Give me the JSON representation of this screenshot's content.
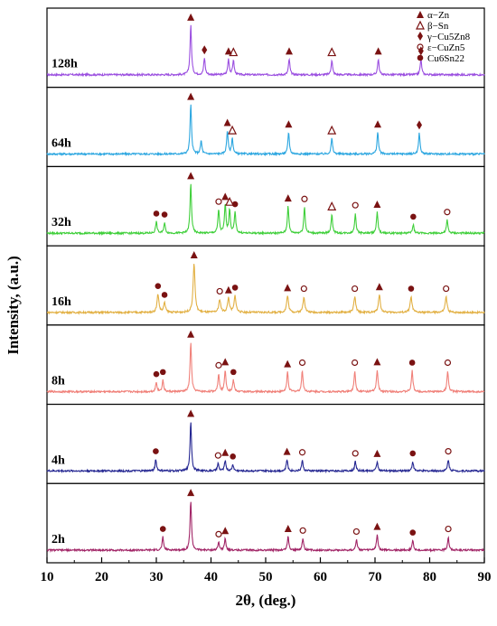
{
  "chart_data": {
    "type": "line",
    "xlabel": "2θ, (deg.)",
    "ylabel": "Intensity, (a.u.)",
    "xlim": [
      10,
      90
    ],
    "xticks": [
      "10",
      "20",
      "30",
      "40",
      "50",
      "60",
      "70",
      "80",
      "90"
    ],
    "grid": false,
    "legend_position": "top-right",
    "markers": [
      {
        "key": "alpha",
        "label": "α−Zn",
        "shape": "triangle-filled",
        "color": "#7a1212"
      },
      {
        "key": "beta",
        "label": "β−Sn",
        "shape": "triangle-open",
        "color": "#7a1212"
      },
      {
        "key": "gamma",
        "label": "γ−Cu5Zn8",
        "shape": "diamond",
        "color": "#7a1212"
      },
      {
        "key": "eps",
        "label": "ε−CuZn5",
        "shape": "circle-open",
        "color": "#7a1212"
      },
      {
        "key": "cusn",
        "label": "Cu6Sn22",
        "shape": "circle-filled",
        "color": "#7a1212"
      }
    ],
    "series": [
      {
        "name": "128h",
        "color": "#9b4fe0",
        "peaks": [
          [
            36.3,
            0.95
          ],
          [
            38.8,
            0.32
          ],
          [
            43.2,
            0.3
          ],
          [
            44.1,
            0.28
          ],
          [
            54.3,
            0.3
          ],
          [
            62.1,
            0.28
          ],
          [
            70.6,
            0.3
          ],
          [
            78.4,
            0.3
          ]
        ],
        "markers": [
          [
            36.3,
            "alpha"
          ],
          [
            38.8,
            "gamma"
          ],
          [
            43.2,
            "alpha"
          ],
          [
            44.1,
            "beta"
          ],
          [
            54.3,
            "alpha"
          ],
          [
            62.1,
            "beta"
          ],
          [
            70.6,
            "alpha"
          ],
          [
            78.4,
            "gamma"
          ]
        ]
      },
      {
        "name": "64h",
        "color": "#2ba6e0",
        "peaks": [
          [
            36.3,
            0.95
          ],
          [
            38.2,
            0.25
          ],
          [
            43.0,
            0.45
          ],
          [
            43.9,
            0.3
          ],
          [
            54.2,
            0.42
          ],
          [
            62.1,
            0.3
          ],
          [
            70.5,
            0.42
          ],
          [
            78.1,
            0.4
          ]
        ],
        "markers": [
          [
            36.3,
            "alpha"
          ],
          [
            43.0,
            "alpha"
          ],
          [
            43.9,
            "beta"
          ],
          [
            54.2,
            "alpha"
          ],
          [
            62.1,
            "beta"
          ],
          [
            70.5,
            "alpha"
          ],
          [
            78.1,
            "gamma"
          ]
        ]
      },
      {
        "name": "32h",
        "color": "#3fcf3a",
        "peaks": [
          [
            30.0,
            0.22
          ],
          [
            31.5,
            0.2
          ],
          [
            36.3,
            0.95
          ],
          [
            41.4,
            0.45
          ],
          [
            42.6,
            0.55
          ],
          [
            43.4,
            0.45
          ],
          [
            44.4,
            0.4
          ],
          [
            54.1,
            0.52
          ],
          [
            57.1,
            0.5
          ],
          [
            62.1,
            0.36
          ],
          [
            66.4,
            0.38
          ],
          [
            70.4,
            0.4
          ],
          [
            77.0,
            0.16
          ],
          [
            83.2,
            0.25
          ]
        ],
        "markers": [
          [
            30.0,
            "cusn"
          ],
          [
            31.5,
            "cusn"
          ],
          [
            36.3,
            "alpha"
          ],
          [
            41.4,
            "eps"
          ],
          [
            42.6,
            "alpha"
          ],
          [
            43.4,
            "beta"
          ],
          [
            44.4,
            "cusn"
          ],
          [
            54.1,
            "alpha"
          ],
          [
            57.1,
            "eps"
          ],
          [
            62.1,
            "beta"
          ],
          [
            66.4,
            "eps"
          ],
          [
            70.4,
            "alpha"
          ],
          [
            77.0,
            "cusn"
          ],
          [
            83.2,
            "eps"
          ]
        ]
      },
      {
        "name": "16h",
        "color": "#e2b043",
        "peak_width": 0.2,
        "peaks": [
          [
            30.3,
            0.35
          ],
          [
            31.5,
            0.18
          ],
          [
            36.9,
            0.95
          ],
          [
            41.6,
            0.25
          ],
          [
            43.2,
            0.28
          ],
          [
            44.4,
            0.32
          ],
          [
            54.0,
            0.32
          ],
          [
            57.0,
            0.3
          ],
          [
            66.3,
            0.3
          ],
          [
            70.8,
            0.34
          ],
          [
            76.6,
            0.3
          ],
          [
            83.0,
            0.3
          ]
        ],
        "markers": [
          [
            30.3,
            "cusn"
          ],
          [
            31.5,
            "cusn"
          ],
          [
            36.9,
            "alpha"
          ],
          [
            41.6,
            "eps"
          ],
          [
            43.2,
            "alpha"
          ],
          [
            44.4,
            "cusn"
          ],
          [
            54.0,
            "alpha"
          ],
          [
            57.0,
            "eps"
          ],
          [
            66.3,
            "eps"
          ],
          [
            70.8,
            "alpha"
          ],
          [
            76.6,
            "cusn"
          ],
          [
            83.0,
            "eps"
          ]
        ]
      },
      {
        "name": "8h",
        "color": "#f08079",
        "peaks": [
          [
            30.0,
            0.18
          ],
          [
            31.2,
            0.22
          ],
          [
            36.3,
            0.95
          ],
          [
            41.4,
            0.35
          ],
          [
            42.6,
            0.42
          ],
          [
            44.1,
            0.22
          ],
          [
            54.0,
            0.38
          ],
          [
            56.7,
            0.4
          ],
          [
            66.3,
            0.4
          ],
          [
            70.4,
            0.42
          ],
          [
            76.8,
            0.4
          ],
          [
            83.3,
            0.4
          ]
        ],
        "markers": [
          [
            30.0,
            "cusn"
          ],
          [
            31.2,
            "cusn"
          ],
          [
            36.3,
            "alpha"
          ],
          [
            41.4,
            "eps"
          ],
          [
            42.6,
            "alpha"
          ],
          [
            44.1,
            "cusn"
          ],
          [
            54.0,
            "alpha"
          ],
          [
            56.7,
            "eps"
          ],
          [
            66.3,
            "eps"
          ],
          [
            70.4,
            "alpha"
          ],
          [
            76.8,
            "cusn"
          ],
          [
            83.3,
            "eps"
          ]
        ]
      },
      {
        "name": "4h",
        "color": "#232591",
        "peaks": [
          [
            29.9,
            0.22
          ],
          [
            36.3,
            0.95
          ],
          [
            41.3,
            0.14
          ],
          [
            42.6,
            0.2
          ],
          [
            44.0,
            0.12
          ],
          [
            53.9,
            0.22
          ],
          [
            56.7,
            0.2
          ],
          [
            66.4,
            0.18
          ],
          [
            70.4,
            0.18
          ],
          [
            76.9,
            0.18
          ],
          [
            83.4,
            0.22
          ]
        ],
        "markers": [
          [
            29.9,
            "cusn"
          ],
          [
            36.3,
            "alpha"
          ],
          [
            41.3,
            "eps"
          ],
          [
            42.6,
            "alpha"
          ],
          [
            44.0,
            "cusn"
          ],
          [
            53.9,
            "alpha"
          ],
          [
            56.7,
            "eps"
          ],
          [
            66.4,
            "eps"
          ],
          [
            70.4,
            "alpha"
          ],
          [
            76.9,
            "cusn"
          ],
          [
            83.4,
            "eps"
          ]
        ]
      },
      {
        "name": "2h",
        "color": "#a12466",
        "peaks": [
          [
            31.2,
            0.25
          ],
          [
            36.3,
            0.95
          ],
          [
            41.4,
            0.15
          ],
          [
            42.6,
            0.22
          ],
          [
            54.1,
            0.26
          ],
          [
            56.8,
            0.22
          ],
          [
            66.6,
            0.2
          ],
          [
            70.4,
            0.3
          ],
          [
            76.9,
            0.18
          ],
          [
            83.4,
            0.25
          ]
        ],
        "markers": [
          [
            31.2,
            "cusn"
          ],
          [
            36.3,
            "alpha"
          ],
          [
            41.4,
            "eps"
          ],
          [
            42.6,
            "alpha"
          ],
          [
            54.1,
            "alpha"
          ],
          [
            56.8,
            "eps"
          ],
          [
            66.6,
            "eps"
          ],
          [
            70.4,
            "alpha"
          ],
          [
            76.9,
            "cusn"
          ],
          [
            83.4,
            "eps"
          ]
        ]
      }
    ]
  }
}
